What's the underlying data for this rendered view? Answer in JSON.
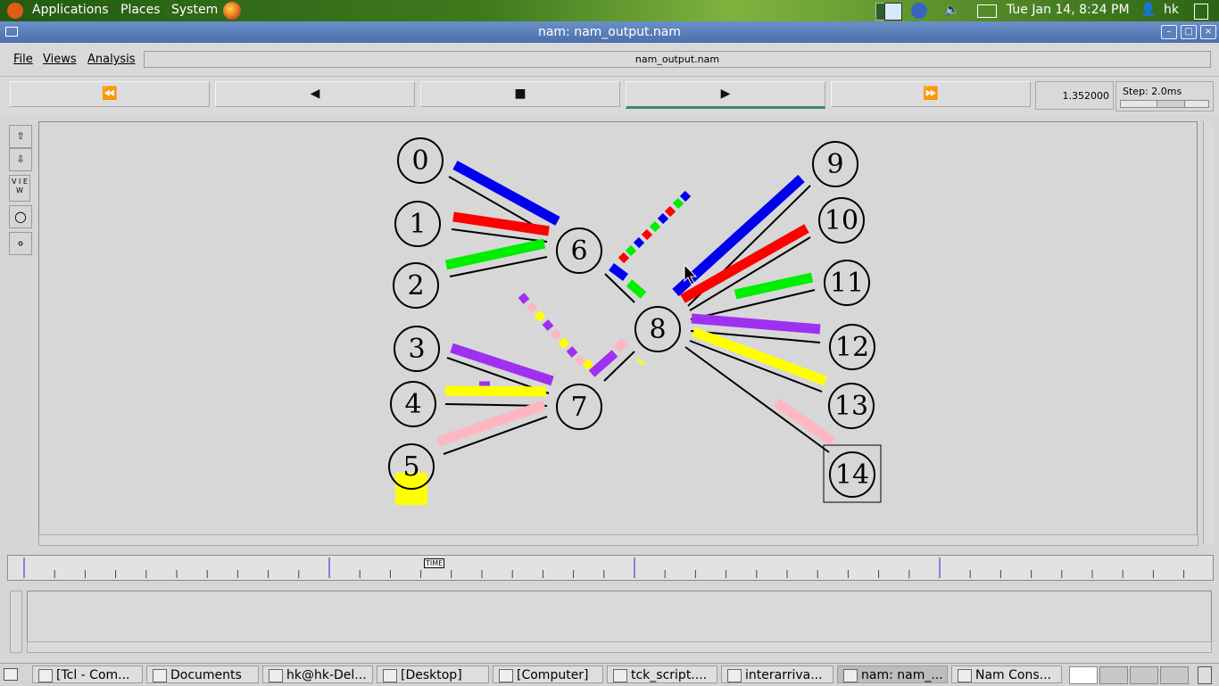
{
  "top_panel": {
    "menus": [
      "Applications",
      "Places",
      "System"
    ],
    "clock": "Tue Jan 14,  8:24 PM",
    "user": "hk"
  },
  "window": {
    "title": "nam: nam_output.nam"
  },
  "menubar": {
    "file": "File",
    "views": "Views",
    "analysis": "Analysis",
    "filename": "nam_output.nam"
  },
  "controls": {
    "rewind": "⏪",
    "back": "◀",
    "stop": "■",
    "play": "▶",
    "fast_forward": "⏩",
    "time": "1.352000",
    "step_label": "Step: 2.0ms"
  },
  "left_tools": {
    "zoom_in": "⇧",
    "zoom_out": "⇩",
    "view": "V I E W",
    "circle_large": "○",
    "circle_small": "∘"
  },
  "network": {
    "nodes": [
      "0",
      "1",
      "2",
      "3",
      "4",
      "5",
      "6",
      "7",
      "8",
      "9",
      "10",
      "11",
      "12",
      "13",
      "14"
    ]
  },
  "timeline": {
    "label": "TIME"
  },
  "taskbar": {
    "tasks": [
      "[Tcl - Com...",
      "Documents",
      "hk@hk-Del...",
      "[Desktop]",
      "[Computer]",
      "tck_script....",
      "interarriva...",
      "nam: nam_...",
      "Nam Cons..."
    ]
  },
  "colors": {
    "blue": "#0000ee",
    "red": "#ff0000",
    "green": "#00ee00",
    "purple": "#a030f0",
    "yellow": "#ffff00",
    "pink": "#ffb6c1"
  }
}
